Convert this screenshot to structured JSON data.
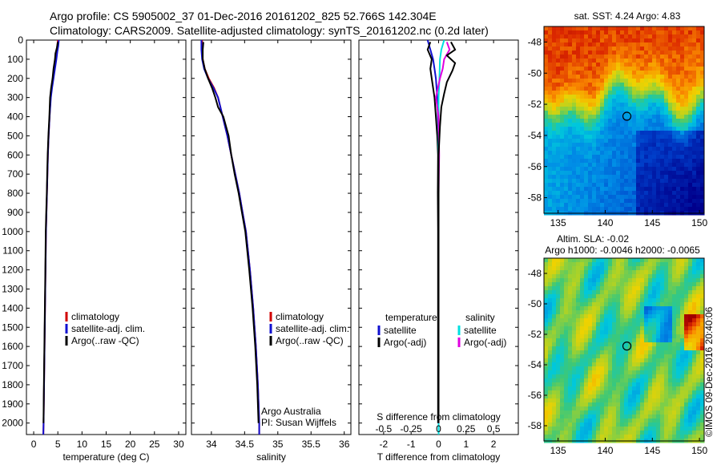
{
  "header": {
    "line1": "Argo profile: CS 5905002_37 01-Dec-2016 20161202_825 52.766S 142.304E",
    "line2": "Climatology: CARS2009. Satellite-adjusted climatology: synTS_20161202.nc (0.2d later)"
  },
  "colors": {
    "climatology": "#d00000",
    "satellite": "#1010d0",
    "argo": "#000000",
    "sal_satellite": "#00e0e0",
    "sal_argo": "#e000e0"
  },
  "chart_data": [
    {
      "type": "line",
      "xlabel": "temperature (deg C)",
      "ylabel": "",
      "xlim": [
        -1.5,
        31.5
      ],
      "ylim": [
        2060,
        0
      ],
      "xticks": [
        0,
        5,
        10,
        15,
        20,
        25,
        30
      ],
      "yticks": [
        0,
        100,
        200,
        300,
        400,
        500,
        600,
        700,
        800,
        900,
        1000,
        1100,
        1200,
        1300,
        1400,
        1500,
        1600,
        1700,
        1800,
        1900,
        2000
      ],
      "legend": [
        "climatology",
        "satellite-adj. clim.",
        "Argo(..raw -QC)"
      ],
      "legend_location": "lower-center",
      "series": [
        {
          "name": "climatology",
          "color": "#d00000",
          "points": [
            [
              5.0,
              0
            ],
            [
              4.9,
              30
            ],
            [
              4.8,
              60
            ],
            [
              4.6,
              100
            ],
            [
              4.3,
              150
            ],
            [
              4.0,
              200
            ],
            [
              3.7,
              250
            ],
            [
              3.5,
              300
            ],
            [
              3.3,
              400
            ],
            [
              3.1,
              500
            ],
            [
              2.95,
              600
            ],
            [
              2.85,
              700
            ],
            [
              2.75,
              800
            ],
            [
              2.65,
              900
            ],
            [
              2.55,
              1000
            ],
            [
              2.45,
              1200
            ],
            [
              2.35,
              1400
            ],
            [
              2.25,
              1600
            ],
            [
              2.15,
              1800
            ],
            [
              2.05,
              2000
            ],
            [
              2.0,
              2060
            ]
          ]
        },
        {
          "name": "satellite-adj. clim.",
          "color": "#1010d0",
          "points": [
            [
              5.2,
              0
            ],
            [
              5.1,
              30
            ],
            [
              4.9,
              60
            ],
            [
              4.7,
              100
            ],
            [
              4.4,
              150
            ],
            [
              4.1,
              200
            ],
            [
              3.8,
              250
            ],
            [
              3.55,
              300
            ],
            [
              3.3,
              400
            ],
            [
              3.1,
              500
            ],
            [
              2.95,
              600
            ],
            [
              2.85,
              700
            ],
            [
              2.75,
              800
            ],
            [
              2.65,
              900
            ],
            [
              2.55,
              1000
            ],
            [
              2.45,
              1200
            ],
            [
              2.35,
              1400
            ],
            [
              2.25,
              1600
            ],
            [
              2.15,
              1800
            ],
            [
              2.05,
              2000
            ],
            [
              2.0,
              2060
            ]
          ]
        },
        {
          "name": "Argo(..raw -QC)",
          "color": "#000000",
          "points": [
            [
              5.0,
              10
            ],
            [
              4.8,
              40
            ],
            [
              4.5,
              70
            ],
            [
              4.4,
              100
            ],
            [
              4.1,
              150
            ],
            [
              3.9,
              200
            ],
            [
              3.6,
              250
            ],
            [
              3.4,
              300
            ],
            [
              3.25,
              400
            ],
            [
              3.05,
              500
            ],
            [
              2.9,
              600
            ],
            [
              2.8,
              700
            ],
            [
              2.72,
              800
            ],
            [
              2.6,
              900
            ],
            [
              2.5,
              1000
            ],
            [
              2.42,
              1200
            ],
            [
              2.32,
              1400
            ],
            [
              2.22,
              1600
            ],
            [
              2.12,
              1800
            ],
            [
              2.03,
              2000
            ]
          ]
        }
      ]
    },
    {
      "type": "line",
      "xlabel": "salinity",
      "ylabel": "",
      "xlim": [
        33.7,
        36.1
      ],
      "ylim": [
        2060,
        0
      ],
      "xticks": [
        34,
        34.5,
        35,
        35.5,
        36
      ],
      "xticklabels": [
        "34",
        "34.5",
        "35",
        "35.5",
        "36"
      ],
      "legend": [
        "climatology",
        "satellite-adj. clim.",
        "Argo(..raw -QC)"
      ],
      "legend_location": "lower-right",
      "annotation": [
        "Argo Australia",
        "PI: Susan Wijffels"
      ],
      "series": [
        {
          "name": "climatology",
          "color": "#d00000",
          "points": [
            [
              33.86,
              0
            ],
            [
              33.86,
              50
            ],
            [
              33.87,
              100
            ],
            [
              33.9,
              150
            ],
            [
              33.96,
              200
            ],
            [
              34.04,
              250
            ],
            [
              34.1,
              300
            ],
            [
              34.17,
              400
            ],
            [
              34.24,
              500
            ],
            [
              34.3,
              600
            ],
            [
              34.36,
              700
            ],
            [
              34.42,
              800
            ],
            [
              34.47,
              900
            ],
            [
              34.52,
              1000
            ],
            [
              34.58,
              1200
            ],
            [
              34.63,
              1400
            ],
            [
              34.67,
              1600
            ],
            [
              34.7,
              1800
            ],
            [
              34.72,
              2000
            ],
            [
              34.72,
              2060
            ]
          ]
        },
        {
          "name": "satellite-adj. clim.",
          "color": "#1010d0",
          "points": [
            [
              33.85,
              0
            ],
            [
              33.85,
              50
            ],
            [
              33.86,
              100
            ],
            [
              33.89,
              150
            ],
            [
              33.95,
              200
            ],
            [
              34.03,
              250
            ],
            [
              34.1,
              300
            ],
            [
              34.17,
              400
            ],
            [
              34.24,
              500
            ],
            [
              34.3,
              600
            ],
            [
              34.36,
              700
            ],
            [
              34.42,
              800
            ],
            [
              34.47,
              900
            ],
            [
              34.52,
              1000
            ],
            [
              34.58,
              1200
            ],
            [
              34.63,
              1400
            ],
            [
              34.67,
              1600
            ],
            [
              34.7,
              1800
            ],
            [
              34.72,
              2000
            ],
            [
              34.72,
              2060
            ]
          ]
        },
        {
          "name": "Argo(..raw -QC)",
          "color": "#000000",
          "points": [
            [
              33.88,
              10
            ],
            [
              33.87,
              50
            ],
            [
              33.87,
              100
            ],
            [
              33.9,
              150
            ],
            [
              33.95,
              200
            ],
            [
              34.01,
              250
            ],
            [
              34.06,
              300
            ],
            [
              34.1,
              350
            ],
            [
              34.18,
              400
            ],
            [
              34.22,
              450
            ],
            [
              34.26,
              500
            ],
            [
              34.3,
              600
            ],
            [
              34.35,
              700
            ],
            [
              34.41,
              800
            ],
            [
              34.46,
              900
            ],
            [
              34.51,
              1000
            ],
            [
              34.57,
              1200
            ],
            [
              34.62,
              1400
            ],
            [
              34.66,
              1600
            ],
            [
              34.69,
              1800
            ],
            [
              34.71,
              2000
            ]
          ]
        }
      ]
    },
    {
      "type": "line",
      "xlabel": "T difference from climatology",
      "xlabel2": "S difference from climatology",
      "ylabel": "",
      "xlim": [
        -2.9,
        2.9
      ],
      "ylim": [
        2060,
        0
      ],
      "xticks": [
        -2,
        -1,
        0,
        1,
        2
      ],
      "top_ticklabels": [
        "-0.5",
        "-0.25",
        "0",
        "0.25",
        "0.5"
      ],
      "legend_groups": [
        {
          "title": "temperature",
          "entries": [
            "satellite",
            "Argo(-adj)"
          ]
        },
        {
          "title": "salinity",
          "entries": [
            "satellite",
            "Argo(-adj)"
          ]
        }
      ],
      "legend_location": "lower-center",
      "series": [
        {
          "name": "satellite (temperature)",
          "color": "#1010d0",
          "points": [
            [
              -0.4,
              0
            ],
            [
              -0.3,
              50
            ],
            [
              -0.2,
              100
            ],
            [
              -0.15,
              150
            ],
            [
              -0.1,
              200
            ],
            [
              -0.05,
              300
            ],
            [
              0,
              500
            ],
            [
              0,
              2060
            ]
          ]
        },
        {
          "name": "Argo(-adj) (temperature)",
          "color": "#000000",
          "points": [
            [
              -0.3,
              10
            ],
            [
              -0.4,
              50
            ],
            [
              -0.25,
              100
            ],
            [
              -0.3,
              150
            ],
            [
              -0.25,
              200
            ],
            [
              -0.15,
              300
            ],
            [
              -0.1,
              400
            ],
            [
              -0.05,
              500
            ],
            [
              -0.02,
              600
            ],
            [
              -0.03,
              800
            ],
            [
              -0.02,
              1000
            ],
            [
              -0.02,
              1400
            ],
            [
              -0.02,
              2000
            ]
          ]
        },
        {
          "name": "satellite (salinity)",
          "color": "#00e0e0",
          "points": [
            [
              0.2,
              0
            ],
            [
              0.1,
              50
            ],
            [
              0.05,
              100
            ],
            [
              0.03,
              200
            ],
            [
              0,
              300
            ],
            [
              0,
              2060
            ]
          ]
        },
        {
          "name": "Argo(-adj) (salinity)",
          "color": "#e000e0",
          "points": [
            [
              0.3,
              10
            ],
            [
              0.4,
              50
            ],
            [
              0.2,
              100
            ],
            [
              0.15,
              150
            ],
            [
              0.05,
              200
            ],
            [
              -0.1,
              300
            ],
            [
              0,
              400
            ],
            [
              0.02,
              600
            ],
            [
              0,
              800
            ],
            [
              0,
              2000
            ]
          ]
        },
        {
          "name": "Argo (salinity raw)",
          "color": "#000000",
          "points": [
            [
              0.45,
              10
            ],
            [
              0.6,
              50
            ],
            [
              0.3,
              80
            ],
            [
              0.6,
              120
            ],
            [
              0.5,
              160
            ],
            [
              0.3,
              220
            ],
            [
              0.2,
              280
            ],
            [
              0.1,
              350
            ],
            [
              0.05,
              450
            ],
            [
              0,
              600
            ],
            [
              0,
              2000
            ]
          ]
        }
      ]
    }
  ],
  "maps": [
    {
      "title": "sat. SST: 4.24  Argo: 4.83",
      "yticks": [
        "-48",
        "-50",
        "-52",
        "-54",
        "-56",
        "-58"
      ],
      "xticks": [
        "135",
        "140",
        "145",
        "150"
      ],
      "marker": {
        "lon": 142.3,
        "lat": -52.77
      }
    },
    {
      "title": "Altim. SLA: -0.02",
      "subtitle": "Argo h1000: -0.0046  h2000: -0.0065",
      "yticks": [
        "-48",
        "-50",
        "-52",
        "-54",
        "-56",
        "-58"
      ],
      "xticks": [
        "135",
        "140",
        "145",
        "150"
      ],
      "marker": {
        "lon": 142.3,
        "lat": -52.77
      }
    }
  ],
  "footer": {
    "stamp": "©IMOS 09-Dec-2016 20:40:06"
  }
}
